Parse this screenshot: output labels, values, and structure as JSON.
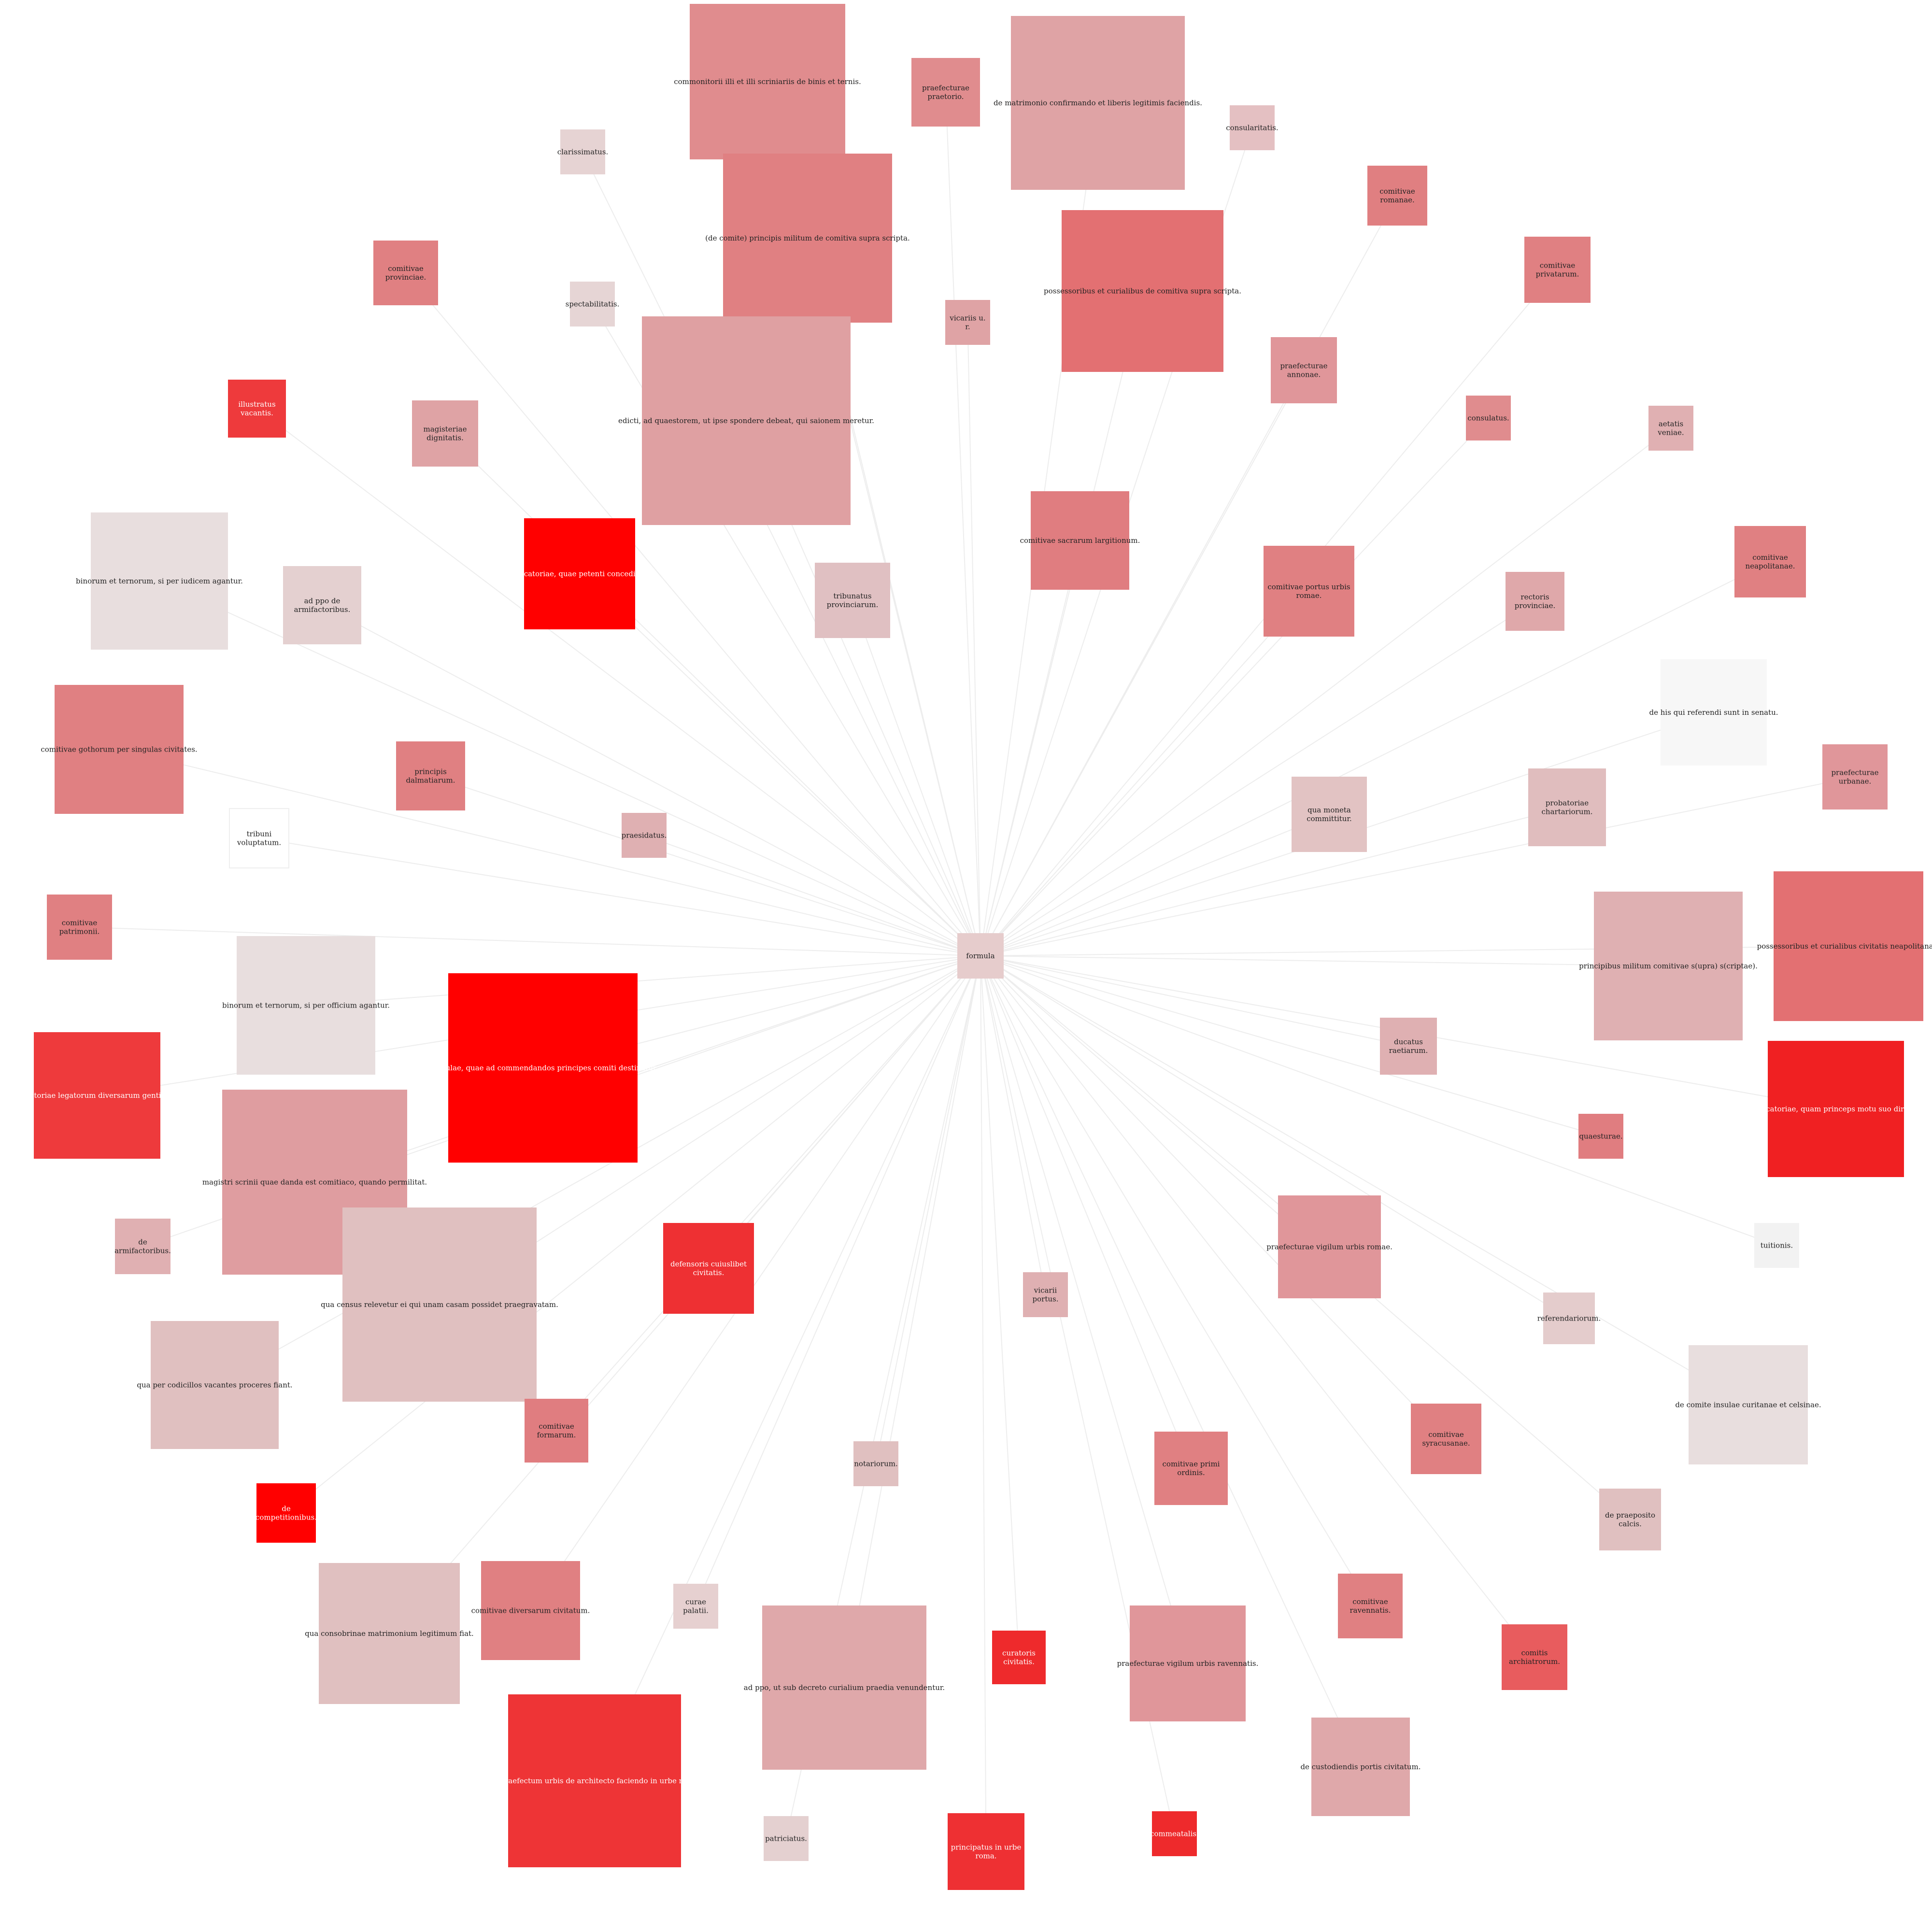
{
  "center": {
    "label": "formula",
    "fill": "#e6cccc",
    "text_color": "dark"
  },
  "edge_color": "#ededed",
  "nodes": [
    {
      "id": "commonitorii",
      "label": "commonitorii illi et illi scriniariis de binis et ternis.",
      "fill": "#e08c8e",
      "text_color": "dark"
    },
    {
      "id": "praef-praetorio",
      "label": "praefecturae praetorio.",
      "fill": "#e08c8e",
      "text_color": "dark"
    },
    {
      "id": "matrimonio",
      "label": "de matrimonio confirmando et liberis legitimis faciendis.",
      "fill": "#dfa3a5",
      "text_color": "dark"
    },
    {
      "id": "consularitatis",
      "label": "consularitatis.",
      "fill": "#e4c0c2",
      "text_color": "dark"
    },
    {
      "id": "clarissimatus",
      "label": "clarissimatus.",
      "fill": "#e6d3d3",
      "text_color": "dark"
    },
    {
      "id": "de-comite-principis",
      "label": "(de comite) principis militum de comitiva supra scripta.",
      "fill": "#e08082",
      "text_color": "dark"
    },
    {
      "id": "comit-romanae",
      "label": "comitivae romanae.",
      "fill": "#e07f81",
      "text_color": "dark"
    },
    {
      "id": "comit-provinciae",
      "label": "comitivae provinciae.",
      "fill": "#e08082",
      "text_color": "dark"
    },
    {
      "id": "spectabilitatis",
      "label": "spectabilitatis.",
      "fill": "#e6d5d5",
      "text_color": "dark"
    },
    {
      "id": "vicariis-ur",
      "label": "vicariis u. r.",
      "fill": "#dfa3a5",
      "text_color": "dark"
    },
    {
      "id": "possessoribus-comitiva",
      "label": "possessoribus et curialibus de comitiva supra scripta.",
      "fill": "#e37072",
      "text_color": "dark"
    },
    {
      "id": "comit-privatarum",
      "label": "comitivae privatarum.",
      "fill": "#e08082",
      "text_color": "dark"
    },
    {
      "id": "illustratus-vacantis",
      "label": "illustratus vacantis.",
      "fill": "#ee3a3c",
      "text_color": "light"
    },
    {
      "id": "magisteriae",
      "label": "magisteriae dignitatis.",
      "fill": "#dfa3a5",
      "text_color": "dark"
    },
    {
      "id": "edicti",
      "label": "edicti, ad quaestorem, ut ipse spondere debeat, qui saionem meretur.",
      "fill": "#dfa0a2",
      "text_color": "dark"
    },
    {
      "id": "praef-annonae",
      "label": "praefecturae annonae.",
      "fill": "#e0969a",
      "text_color": "dark"
    },
    {
      "id": "consulatus",
      "label": "consulatus.",
      "fill": "#e08c8e",
      "text_color": "dark"
    },
    {
      "id": "aetatis",
      "label": "aetatis veniae.",
      "fill": "#e0b0b2",
      "text_color": "dark"
    },
    {
      "id": "binorum-iudicem",
      "label": "binorum et ternorum, si per iudicem agantur.",
      "fill": "#e8dede",
      "text_color": "dark"
    },
    {
      "id": "ad-ppo-armif",
      "label": "ad ppo de armifactoribus.",
      "fill": "#e4d0d0",
      "text_color": "dark"
    },
    {
      "id": "evocatoriae-petenti",
      "label": "evocatoriae, quae petenti conceditur.",
      "fill": "#ff0000",
      "text_color": "light"
    },
    {
      "id": "tribunatus",
      "label": "tribunatus provinciarum.",
      "fill": "#e0c0c2",
      "text_color": "dark"
    },
    {
      "id": "comit-sacrarum",
      "label": "comitivae sacrarum largitionum.",
      "fill": "#e07d80",
      "text_color": "dark"
    },
    {
      "id": "comit-portus",
      "label": "comitivae portus urbis romae.",
      "fill": "#e08082",
      "text_color": "dark"
    },
    {
      "id": "rectoris",
      "label": "rectoris provinciae.",
      "fill": "#dfa8aa",
      "text_color": "dark"
    },
    {
      "id": "comit-neapolitanae",
      "label": "comitivae neapolitanae.",
      "fill": "#e08082",
      "text_color": "dark"
    },
    {
      "id": "comit-gothorum",
      "label": "comitivae gothorum per singulas civitates.",
      "fill": "#e08082",
      "text_color": "dark"
    },
    {
      "id": "principis-dalmatiarum",
      "label": "principis dalmatiarum.",
      "fill": "#e08082",
      "text_color": "dark"
    },
    {
      "id": "de-his-qui",
      "label": "de his qui referendi sunt in senatu.",
      "fill": "#f7f7f7",
      "text_color": "dark"
    },
    {
      "id": "praef-urbanae",
      "label": "praefecturae urbanae.",
      "fill": "#e0969a",
      "text_color": "dark"
    },
    {
      "id": "qua-moneta",
      "label": "qua moneta committitur.",
      "fill": "#e2c3c3",
      "text_color": "dark"
    },
    {
      "id": "probatoriae",
      "label": "probatoriae chartariorum.",
      "fill": "#e0bdbe",
      "text_color": "dark"
    },
    {
      "id": "tribuni-voluptatum",
      "label": "tribuni voluptatum.",
      "fill": "#ffffff",
      "text_color": "dark"
    },
    {
      "id": "praesidatus",
      "label": "praesidatus.",
      "fill": "#dfb0b2",
      "text_color": "dark"
    },
    {
      "id": "comit-patrimonii",
      "label": "comitivae patrimonii.",
      "fill": "#e08082",
      "text_color": "dark"
    },
    {
      "id": "principibus-militum",
      "label": "principibus militum comitivae s(upra) s(criptae).",
      "fill": "#dfb0b2",
      "text_color": "dark"
    },
    {
      "id": "possessoribus-neapolitanae",
      "label": "possessoribus et curialibus civitatis neapolitanae.",
      "fill": "#e37072",
      "text_color": "dark"
    },
    {
      "id": "binorum-officium",
      "label": "binorum et ternorum, si per officium agantur.",
      "fill": "#e8dede",
      "text_color": "dark"
    },
    {
      "id": "epistulae",
      "label": "epistulae, quae ad commendandos principes comiti destinatur.",
      "fill": "#ff0000",
      "text_color": "light"
    },
    {
      "id": "ducatus",
      "label": "ducatus raetiarum.",
      "fill": "#dfb0b2",
      "text_color": "dark"
    },
    {
      "id": "tractoriae",
      "label": "tractoriae legatorum diversarum gentium.",
      "fill": "#ee3a3c",
      "text_color": "light"
    },
    {
      "id": "quaesturae",
      "label": "quaesturae.",
      "fill": "#e07d80",
      "text_color": "dark"
    },
    {
      "id": "evocatoriae-princeps",
      "label": "evocatoriae, quam princeps motu suo dirigit.",
      "fill": "#f02022",
      "text_color": "light"
    },
    {
      "id": "magistri-scrinii",
      "label": "magistri scrinii quae danda est comitiaco, quando permilitat.",
      "fill": "#df9da0",
      "text_color": "dark"
    },
    {
      "id": "de-armifactoribus",
      "label": "de armifactoribus.",
      "fill": "#e0b0b2",
      "text_color": "dark"
    },
    {
      "id": "qua-census",
      "label": "qua census relevetur ei qui unam casam possidet praegravatam.",
      "fill": "#e0c0c0",
      "text_color": "dark"
    },
    {
      "id": "defensoris",
      "label": "defensoris cuiuslibet civitatis.",
      "fill": "#ee3033",
      "text_color": "light"
    },
    {
      "id": "praef-vigilum-romae",
      "label": "praefecturae vigilum urbis romae.",
      "fill": "#e0969a",
      "text_color": "dark"
    },
    {
      "id": "tuitionis",
      "label": "tuitionis.",
      "fill": "#f2f2f2",
      "text_color": "dark"
    },
    {
      "id": "vicarii-portus",
      "label": "vicarii portus.",
      "fill": "#dfb0b2",
      "text_color": "dark"
    },
    {
      "id": "referendariorum",
      "label": "referendariorum.",
      "fill": "#e4cccc",
      "text_color": "dark"
    },
    {
      "id": "qua-per-codicillos",
      "label": "qua per codicillos vacantes proceres fiant.",
      "fill": "#e0c0c0",
      "text_color": "dark"
    },
    {
      "id": "comit-formarum",
      "label": "comitivae formarum.",
      "fill": "#e07d80",
      "text_color": "dark"
    },
    {
      "id": "de-comite-insulae",
      "label": "de comite insulae curitanae et celsinae.",
      "fill": "#e8dede",
      "text_color": "dark"
    },
    {
      "id": "notariorum",
      "label": "notariorum.",
      "fill": "#e0c0c0",
      "text_color": "dark"
    },
    {
      "id": "comit-primi-ordinis",
      "label": "comitivae primi ordinis.",
      "fill": "#e08082",
      "text_color": "dark"
    },
    {
      "id": "comit-syracusanae",
      "label": "comitivae syracusanae.",
      "fill": "#e08082",
      "text_color": "dark"
    },
    {
      "id": "de-competitionibus",
      "label": "de competitionibus.",
      "fill": "#ff0000",
      "text_color": "light"
    },
    {
      "id": "de-praeposito-calcis",
      "label": "de praeposito calcis.",
      "fill": "#e0c0c0",
      "text_color": "dark"
    },
    {
      "id": "qua-consobrinae",
      "label": "qua consobrinae matrimonium legitimum fiat.",
      "fill": "#e0c0c0",
      "text_color": "dark"
    },
    {
      "id": "comit-diversarum",
      "label": "comitivae diversarum civitatum.",
      "fill": "#e08082",
      "text_color": "dark"
    },
    {
      "id": "curae-palatii",
      "label": "curae palatii.",
      "fill": "#e6d0d0",
      "text_color": "dark"
    },
    {
      "id": "comit-ravennatis",
      "label": "comitivae ravennatis.",
      "fill": "#e08082",
      "text_color": "dark"
    },
    {
      "id": "ad-ppo-decreto",
      "label": "ad ppo, ut sub decreto curialium praedia venundentur.",
      "fill": "#dfa8aa",
      "text_color": "dark"
    },
    {
      "id": "curatoris",
      "label": "curatoris civitatis.",
      "fill": "#ee2a2c",
      "text_color": "light"
    },
    {
      "id": "praef-vigilum-ravennatis",
      "label": "praefecturae vigilum urbis ravennatis.",
      "fill": "#e0969a",
      "text_color": "dark"
    },
    {
      "id": "comitis-archiatrorum",
      "label": "comitis archiatrorum.",
      "fill": "#e85c5e",
      "text_color": "dark"
    },
    {
      "id": "ad-praefectum-architecto",
      "label": "ad praefectum urbis de architecto faciendo in urbe roma.",
      "fill": "#ee3436",
      "text_color": "light"
    },
    {
      "id": "de-custodiendis",
      "label": "de custodiendis portis civitatum.",
      "fill": "#dfa8aa",
      "text_color": "dark"
    },
    {
      "id": "patriciatus",
      "label": "patriciatus.",
      "fill": "#e4d0d0",
      "text_color": "dark"
    },
    {
      "id": "principatus",
      "label": "principatus in urbe roma.",
      "fill": "#ee3033",
      "text_color": "light"
    },
    {
      "id": "commeatalis",
      "label": "commeatalis.",
      "fill": "#ee2a2c",
      "text_color": "light"
    }
  ]
}
